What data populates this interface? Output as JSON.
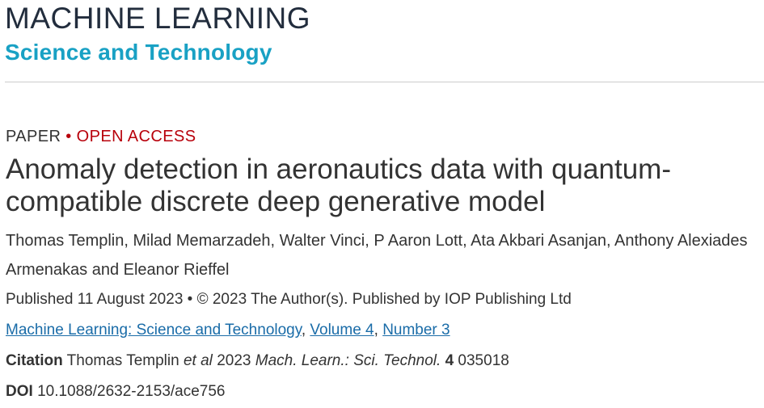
{
  "journal": {
    "name_line1": "MACHINE LEARNING",
    "name_line2": "Science and Technology"
  },
  "article": {
    "type": "PAPER",
    "separator": "•",
    "access": "OPEN ACCESS",
    "title": "Anomaly detection in aeronautics data with quantum-compatible discrete deep generative model",
    "authors": "Thomas Templin, Milad Memarzadeh, Walter Vinci, P Aaron Lott, Ata Akbari Asanjan, Anthony Alexiades Armenakas and Eleanor Rieffel",
    "published": "Published 11 August 2023 • © 2023 The Author(s). Published by IOP Publishing Ltd",
    "journal_link": "Machine Learning: Science and Technology",
    "volume_link": "Volume 4",
    "number_link": "Number 3",
    "link_separator": ",",
    "citation_label": "Citation",
    "citation_authors": "Thomas Templin",
    "citation_etal": "et al",
    "citation_year": "2023",
    "citation_journal": "Mach. Learn.: Sci. Technol.",
    "citation_volume": "4",
    "citation_article": "035018",
    "doi_label": "DOI",
    "doi_value": "10.1088/2632-2153/ace756"
  },
  "colors": {
    "brand_dark": "#222d3d",
    "brand_teal": "#19a1c4",
    "open_access_red": "#b8000b",
    "link_blue": "#1a6ca8"
  }
}
